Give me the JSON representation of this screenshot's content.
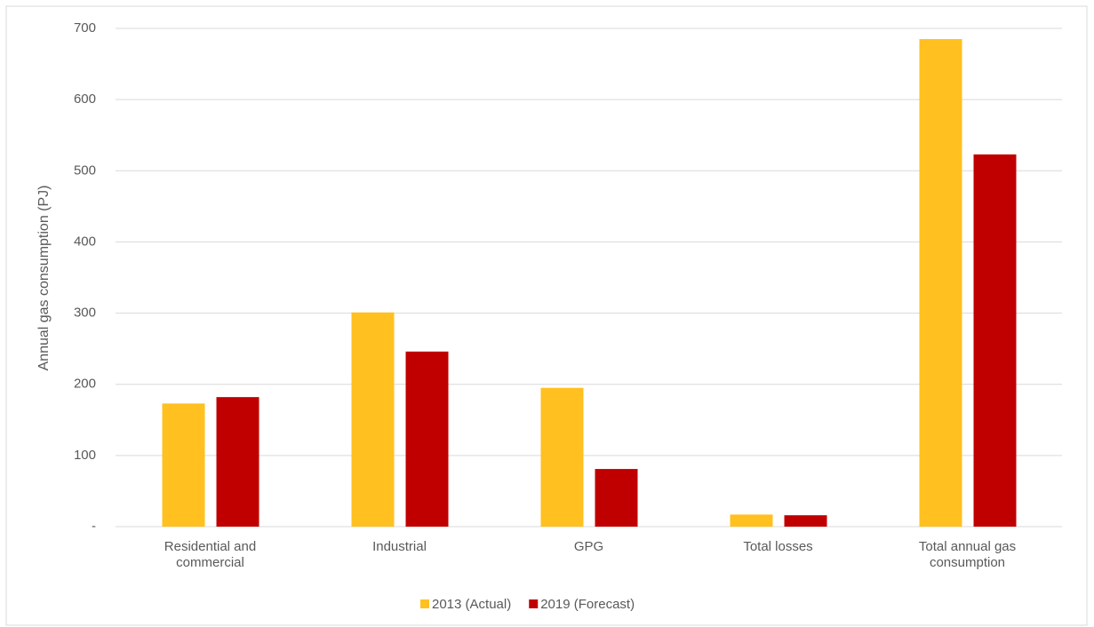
{
  "chart_data": {
    "type": "bar",
    "y_label": "Annual gas consumption (PJ)",
    "categories": [
      "Residential and commercial",
      "Industrial",
      "GPG",
      "Total losses",
      "Total annual gas consumption"
    ],
    "series": [
      {
        "name": "2013 (Actual)",
        "color": "#ffc020",
        "values": [
          173,
          301,
          195,
          17,
          685
        ]
      },
      {
        "name": "2019 (Forecast)",
        "color": "#c00000",
        "values": [
          182,
          246,
          81,
          16,
          523
        ]
      }
    ],
    "ylim": [
      0,
      700
    ],
    "yticks": [
      {
        "value": 0,
        "label": "-"
      },
      100,
      200,
      300,
      400,
      500,
      600,
      700
    ],
    "grid": true
  }
}
